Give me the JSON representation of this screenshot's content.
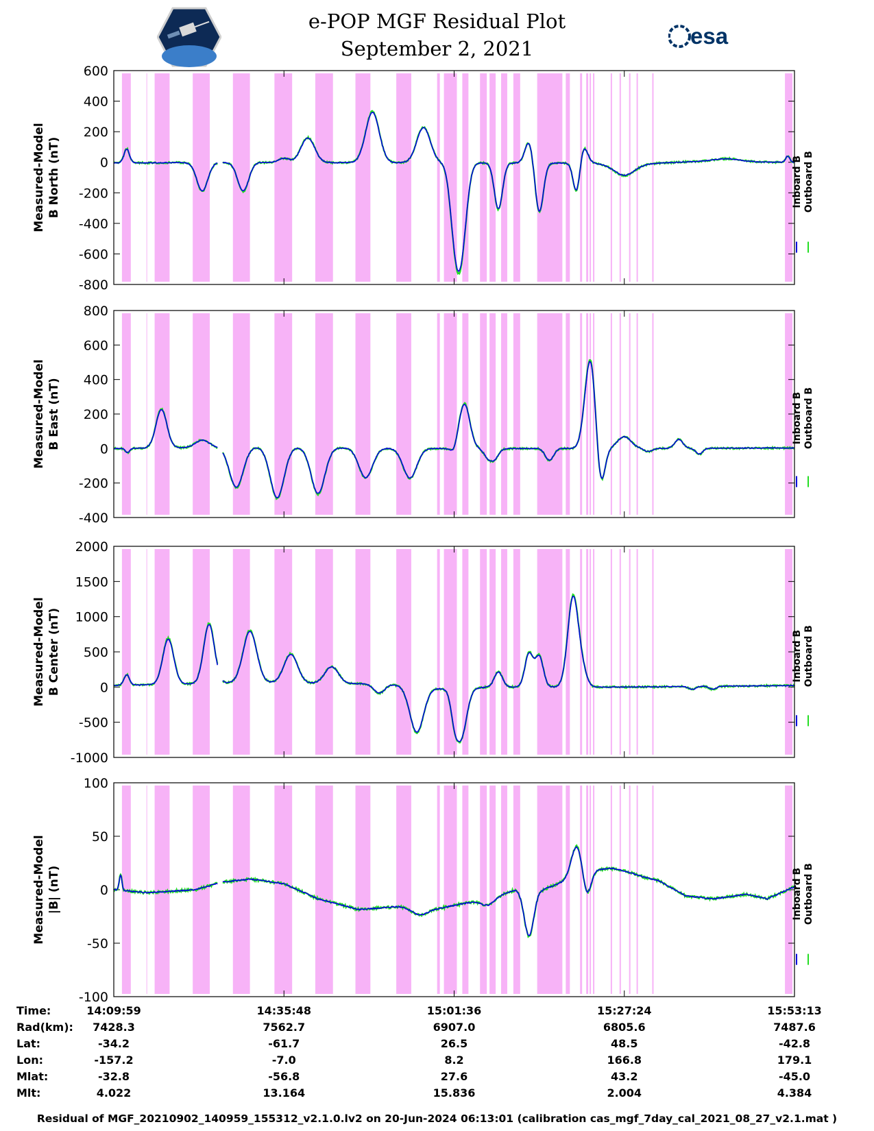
{
  "title": "e-POP MGF Residual Plot",
  "subtitle": "September 2, 2021",
  "logos": {
    "left": "cassiope-satellite-logo",
    "right": "esa"
  },
  "colors": {
    "inboard": "#0000dd",
    "outboard": "#22dd22",
    "shading": "#f7b3f7"
  },
  "legend": {
    "inboard": "Inboard B",
    "outboard": "Outboard B"
  },
  "chart_data": [
    {
      "type": "line",
      "ylabel_1": "Measured-Model",
      "ylabel_2": "B North (nT)",
      "ylim": [
        -800,
        600
      ],
      "yticks": [
        "600",
        "400",
        "200",
        "0",
        "-200",
        "-400",
        "-600",
        "-800"
      ],
      "series": [
        {
          "name": "Inboard B"
        },
        {
          "name": "Outboard B"
        }
      ]
    },
    {
      "type": "line",
      "ylabel_1": "Measured-Model",
      "ylabel_2": "B East (nT)",
      "ylim": [
        -400,
        800
      ],
      "yticks": [
        "800",
        "600",
        "400",
        "200",
        "0",
        "-200",
        "-400"
      ],
      "series": [
        {
          "name": "Inboard B"
        },
        {
          "name": "Outboard B"
        }
      ]
    },
    {
      "type": "line",
      "ylabel_1": "Measured-Model",
      "ylabel_2": "B Center (nT)",
      "ylim": [
        -1000,
        2000
      ],
      "yticks": [
        "2000",
        "1500",
        "1000",
        "500",
        "0",
        "-500",
        "-1000"
      ],
      "series": [
        {
          "name": "Inboard B"
        },
        {
          "name": "Outboard B"
        }
      ]
    },
    {
      "type": "line",
      "ylabel_1": "Measured-Model",
      "ylabel_2": "|B| (nT)",
      "ylim": [
        -100,
        100
      ],
      "yticks": [
        "100",
        "50",
        "0",
        "-50",
        "-100"
      ],
      "series": [
        {
          "name": "Inboard B"
        },
        {
          "name": "Outboard B"
        }
      ]
    }
  ],
  "shaded_intervals_fraction": [
    [
      0.012,
      0.025
    ],
    [
      0.048,
      0.049
    ],
    [
      0.06,
      0.082
    ],
    [
      0.116,
      0.141
    ],
    [
      0.175,
      0.2
    ],
    [
      0.236,
      0.262
    ],
    [
      0.296,
      0.322
    ],
    [
      0.355,
      0.377
    ],
    [
      0.415,
      0.437
    ],
    [
      0.475,
      0.479
    ],
    [
      0.485,
      0.504
    ],
    [
      0.512,
      0.521
    ],
    [
      0.538,
      0.548
    ],
    [
      0.552,
      0.561
    ],
    [
      0.569,
      0.578
    ],
    [
      0.587,
      0.597
    ],
    [
      0.622,
      0.659
    ],
    [
      0.664,
      0.67
    ],
    [
      0.685,
      0.688
    ],
    [
      0.694,
      0.697
    ],
    [
      0.699,
      0.701
    ],
    [
      0.704,
      0.706
    ],
    [
      0.73,
      0.732
    ],
    [
      0.743,
      0.745
    ],
    [
      0.757,
      0.759
    ],
    [
      0.768,
      0.77
    ],
    [
      0.791,
      0.793
    ],
    [
      0.986,
      0.997
    ]
  ],
  "x_ticks_fraction": [
    0.0,
    0.25,
    0.5,
    0.75,
    1.0
  ],
  "info_table": {
    "labels": [
      "Time:",
      "Rad(km):",
      "Lat:",
      "Lon:",
      "Mlat:",
      "Mlt:"
    ],
    "columns": [
      [
        "14:09:59",
        "7428.3",
        "-34.2",
        "-157.2",
        "-32.8",
        "4.022"
      ],
      [
        "14:35:48",
        "7562.7",
        "-61.7",
        "-7.0",
        "-56.8",
        "13.164"
      ],
      [
        "15:01:36",
        "6907.0",
        "26.5",
        "8.2",
        "27.6",
        "15.836"
      ],
      [
        "15:27:24",
        "6805.6",
        "48.5",
        "166.8",
        "43.2",
        "2.004"
      ],
      [
        "15:53:13",
        "7487.6",
        "-42.8",
        "179.1",
        "-45.0",
        "4.384"
      ]
    ]
  },
  "footer": "Residual of MGF_20210902_140959_155312_v2.1.0.lv2 on 20-Jun-2024 06:13:01 (calibration cas_mgf_7day_cal_2021_08_27_v2.1.mat )",
  "trace_shapes": [
    {
      "base": [
        [
          0,
          -0.02
        ],
        [
          0.05,
          -0.02
        ],
        [
          0.1,
          -0.01
        ],
        [
          0.3,
          -0.01
        ],
        [
          0.5,
          -0.02
        ],
        [
          0.7,
          -0.03
        ],
        [
          0.75,
          -0.08
        ],
        [
          0.85,
          0.02
        ],
        [
          1,
          0.0
        ]
      ],
      "events": [
        [
          0.019,
          0.45,
          0.004
        ],
        [
          0.13,
          -0.93,
          0.008
        ],
        [
          0.19,
          -0.93,
          0.008
        ],
        [
          0.25,
          0.14,
          0.008
        ],
        [
          0.285,
          0.8,
          0.01
        ],
        [
          0.38,
          1.65,
          0.01
        ],
        [
          0.455,
          1.15,
          0.01
        ],
        [
          0.5,
          -1.55,
          0.007
        ],
        [
          0.51,
          -2.8,
          0.008
        ],
        [
          0.565,
          -1.5,
          0.006
        ],
        [
          0.61,
          0.7,
          0.006
        ],
        [
          0.625,
          -1.6,
          0.006
        ],
        [
          0.68,
          -1.0,
          0.005
        ],
        [
          0.69,
          0.55,
          0.006
        ],
        [
          0.75,
          -0.35,
          0.015
        ],
        [
          0.9,
          0.1,
          0.02
        ],
        [
          0.99,
          0.2,
          0.003
        ]
      ],
      "gap": [
        0.153,
        0.16
      ],
      "noise": 0.02
    },
    {
      "base": [
        [
          0,
          0.0
        ],
        [
          0.2,
          0.05
        ],
        [
          0.45,
          0.0
        ],
        [
          0.65,
          0.0
        ],
        [
          0.75,
          0.0
        ],
        [
          1,
          0.02
        ]
      ],
      "events": [
        [
          0.02,
          -0.15,
          0.003
        ],
        [
          0.07,
          1.3,
          0.008
        ],
        [
          0.13,
          0.25,
          0.01
        ],
        [
          0.18,
          -1.35,
          0.01
        ],
        [
          0.24,
          -1.7,
          0.01
        ],
        [
          0.3,
          -1.55,
          0.01
        ],
        [
          0.37,
          -1.0,
          0.01
        ],
        [
          0.435,
          -1.0,
          0.01
        ],
        [
          0.5,
          -0.2,
          0.005
        ],
        [
          0.515,
          1.5,
          0.008
        ],
        [
          0.55,
          -0.3,
          0.006
        ],
        [
          0.56,
          -0.3,
          0.006
        ],
        [
          0.64,
          -0.4,
          0.006
        ],
        [
          0.7,
          3.0,
          0.008
        ],
        [
          0.715,
          -1.4,
          0.006
        ],
        [
          0.75,
          0.4,
          0.01
        ],
        [
          0.785,
          -0.1,
          0.006
        ],
        [
          0.83,
          0.3,
          0.006
        ],
        [
          0.86,
          -0.2,
          0.005
        ]
      ],
      "gap": [
        0.153,
        0.16
      ],
      "noise": 0.02
    },
    {
      "base": [
        [
          0,
          0.05
        ],
        [
          0.1,
          0.1
        ],
        [
          0.2,
          0.15
        ],
        [
          0.4,
          0.1
        ],
        [
          0.5,
          -0.1
        ],
        [
          0.55,
          0.0
        ],
        [
          0.75,
          0.0
        ],
        [
          1,
          0.05
        ]
      ],
      "events": [
        [
          0.019,
          0.35,
          0.004
        ],
        [
          0.08,
          1.5,
          0.008
        ],
        [
          0.14,
          1.95,
          0.008
        ],
        [
          0.2,
          1.7,
          0.01
        ],
        [
          0.26,
          0.95,
          0.01
        ],
        [
          0.32,
          0.55,
          0.01
        ],
        [
          0.39,
          -0.3,
          0.008
        ],
        [
          0.445,
          -1.5,
          0.01
        ],
        [
          0.5,
          -0.6,
          0.005
        ],
        [
          0.51,
          -1.6,
          0.008
        ],
        [
          0.565,
          0.5,
          0.006
        ],
        [
          0.61,
          1.1,
          0.006
        ],
        [
          0.625,
          1.0,
          0.006
        ],
        [
          0.675,
          3.0,
          0.008
        ],
        [
          0.69,
          0.35,
          0.006
        ],
        [
          0.85,
          -0.1,
          0.005
        ],
        [
          0.88,
          -0.1,
          0.005
        ]
      ],
      "gap": [
        0.153,
        0.16
      ],
      "noise": 0.02
    },
    {
      "base": [
        [
          0,
          0.0
        ],
        [
          0.05,
          -0.1
        ],
        [
          0.12,
          0.0
        ],
        [
          0.16,
          0.25
        ],
        [
          0.2,
          0.35
        ],
        [
          0.25,
          0.2
        ],
        [
          0.3,
          -0.3
        ],
        [
          0.36,
          -0.65
        ],
        [
          0.42,
          -0.55
        ],
        [
          0.48,
          -0.6
        ],
        [
          0.55,
          -0.3
        ],
        [
          0.59,
          0.0
        ],
        [
          0.63,
          0.0
        ],
        [
          0.7,
          0.6
        ],
        [
          0.73,
          0.6
        ],
        [
          0.76,
          0.5
        ],
        [
          0.8,
          0.3
        ],
        [
          0.84,
          -0.2
        ],
        [
          0.88,
          -0.3
        ],
        [
          0.93,
          -0.15
        ],
        [
          0.96,
          -0.3
        ],
        [
          1,
          0.1
        ]
      ],
      "events": [
        [
          0.01,
          0.5,
          0.002
        ],
        [
          0.45,
          -0.25,
          0.012
        ],
        [
          0.55,
          -0.2,
          0.01
        ],
        [
          0.61,
          -1.5,
          0.007
        ],
        [
          0.68,
          1.0,
          0.008
        ],
        [
          0.695,
          -0.8,
          0.006
        ],
        [
          0.735,
          0.1,
          0.02
        ]
      ],
      "gap": [
        0.153,
        0.16
      ],
      "noise": 0.03
    }
  ]
}
